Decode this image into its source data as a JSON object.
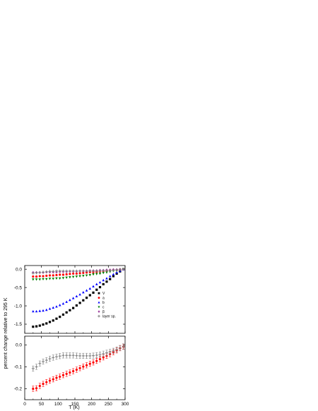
{
  "figure": {
    "ylabel": "percent change relative to 295 K",
    "xlabel": "T (K)"
  },
  "chart_data": [
    {
      "type": "scatter",
      "panel": "top",
      "xlim": [
        0,
        300
      ],
      "ylim": [
        -1.75,
        0.1
      ],
      "xticks": [
        0,
        50,
        100,
        150,
        200,
        250,
        300
      ],
      "xtick_labels_shown": false,
      "yticks": [
        -1.5,
        -1.0,
        -0.5,
        0.0
      ],
      "ytick_labels": [
        "-1.5",
        "-1.0",
        "-0.5",
        "0.0"
      ],
      "legend_position": "right, middle",
      "x": [
        25,
        35,
        45,
        55,
        65,
        75,
        85,
        95,
        105,
        115,
        125,
        135,
        145,
        155,
        165,
        175,
        185,
        195,
        205,
        215,
        225,
        235,
        245,
        255,
        265,
        275,
        285,
        295
      ],
      "series": [
        {
          "name": "V",
          "marker": "square",
          "color": "#000000",
          "values": [
            -1.57,
            -1.56,
            -1.54,
            -1.51,
            -1.48,
            -1.44,
            -1.4,
            -1.35,
            -1.3,
            -1.24,
            -1.18,
            -1.12,
            -1.06,
            -0.99,
            -0.92,
            -0.85,
            -0.78,
            -0.71,
            -0.64,
            -0.56,
            -0.49,
            -0.41,
            -0.34,
            -0.27,
            -0.19,
            -0.12,
            -0.06,
            0.0
          ]
        },
        {
          "name": "a",
          "marker": "circle",
          "color": "#ff0000",
          "values": [
            -0.2,
            -0.2,
            -0.19,
            -0.19,
            -0.18,
            -0.17,
            -0.17,
            -0.16,
            -0.15,
            -0.15,
            -0.14,
            -0.13,
            -0.12,
            -0.12,
            -0.11,
            -0.1,
            -0.09,
            -0.08,
            -0.08,
            -0.07,
            -0.06,
            -0.05,
            -0.04,
            -0.03,
            -0.02,
            -0.02,
            -0.01,
            0.0
          ]
        },
        {
          "name": "b",
          "marker": "triangle-up",
          "color": "#0000ff",
          "values": [
            -1.15,
            -1.15,
            -1.14,
            -1.13,
            -1.11,
            -1.08,
            -1.05,
            -1.02,
            -0.98,
            -0.94,
            -0.89,
            -0.84,
            -0.79,
            -0.74,
            -0.69,
            -0.63,
            -0.58,
            -0.53,
            -0.47,
            -0.41,
            -0.36,
            -0.3,
            -0.25,
            -0.19,
            -0.14,
            -0.09,
            -0.04,
            0.0
          ]
        },
        {
          "name": "c",
          "marker": "triangle-down",
          "color": "#008000",
          "values": [
            -0.28,
            -0.28,
            -0.28,
            -0.27,
            -0.27,
            -0.26,
            -0.26,
            -0.25,
            -0.25,
            -0.24,
            -0.23,
            -0.22,
            -0.21,
            -0.2,
            -0.19,
            -0.18,
            -0.17,
            -0.16,
            -0.14,
            -0.13,
            -0.12,
            -0.1,
            -0.09,
            -0.07,
            -0.05,
            -0.04,
            -0.02,
            0.0
          ]
        },
        {
          "name": "β",
          "marker": "diamond",
          "color": "#a040a0",
          "values": [
            -0.09,
            -0.09,
            -0.09,
            -0.09,
            -0.08,
            -0.08,
            -0.08,
            -0.08,
            -0.07,
            -0.07,
            -0.07,
            -0.06,
            -0.06,
            -0.06,
            -0.05,
            -0.05,
            -0.05,
            -0.04,
            -0.04,
            -0.04,
            -0.03,
            -0.03,
            -0.02,
            -0.02,
            -0.01,
            -0.01,
            0.0,
            0.0
          ]
        },
        {
          "name": "layer sp.",
          "marker": "cross",
          "color": "#808080",
          "values": [
            -0.11,
            -0.1,
            -0.09,
            -0.08,
            -0.07,
            -0.06,
            -0.06,
            -0.05,
            -0.05,
            -0.05,
            -0.05,
            -0.05,
            -0.05,
            -0.05,
            -0.05,
            -0.05,
            -0.05,
            -0.05,
            -0.05,
            -0.05,
            -0.05,
            -0.04,
            -0.04,
            -0.04,
            -0.03,
            -0.02,
            -0.01,
            0.0
          ]
        }
      ]
    },
    {
      "type": "scatter",
      "panel": "bottom",
      "xlim": [
        0,
        300
      ],
      "ylim": [
        -0.25,
        0.04
      ],
      "xticks": [
        0,
        50,
        100,
        150,
        200,
        250,
        300
      ],
      "xtick_labels": [
        "0",
        "50",
        "100",
        "150",
        "200",
        "250",
        "300"
      ],
      "yticks": [
        -0.2,
        -0.1,
        0.0
      ],
      "ytick_labels": [
        "-0.2",
        "-0.1",
        "0.0"
      ],
      "error_bars": true,
      "x": [
        25,
        35,
        45,
        55,
        65,
        75,
        85,
        95,
        105,
        115,
        125,
        135,
        145,
        155,
        165,
        175,
        185,
        195,
        205,
        215,
        225,
        235,
        245,
        255,
        265,
        275,
        285,
        295
      ],
      "series": [
        {
          "name": "a",
          "marker": "circle",
          "color": "#ff0000",
          "error": 0.012,
          "values": [
            -0.2,
            -0.198,
            -0.187,
            -0.178,
            -0.17,
            -0.163,
            -0.157,
            -0.15,
            -0.145,
            -0.138,
            -0.132,
            -0.126,
            -0.12,
            -0.113,
            -0.106,
            -0.099,
            -0.093,
            -0.086,
            -0.08,
            -0.073,
            -0.065,
            -0.057,
            -0.05,
            -0.042,
            -0.033,
            -0.025,
            -0.015,
            -0.008
          ]
        },
        {
          "name": "layer sp.",
          "marker": "cross",
          "color": "#808080",
          "error": 0.012,
          "values": [
            -0.108,
            -0.1,
            -0.085,
            -0.076,
            -0.07,
            -0.063,
            -0.058,
            -0.054,
            -0.051,
            -0.048,
            -0.048,
            -0.048,
            -0.048,
            -0.049,
            -0.05,
            -0.05,
            -0.05,
            -0.05,
            -0.049,
            -0.047,
            -0.044,
            -0.04,
            -0.036,
            -0.032,
            -0.027,
            -0.021,
            -0.014,
            -0.007
          ]
        }
      ]
    }
  ]
}
